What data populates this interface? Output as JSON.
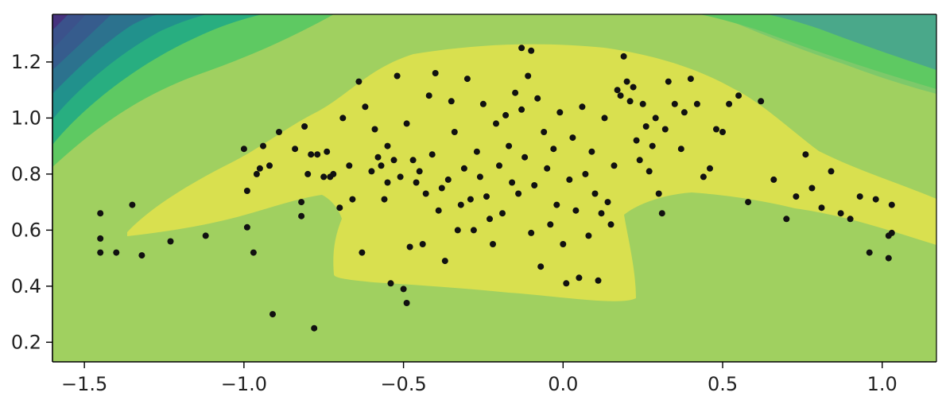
{
  "chart_data": {
    "type": "scatter",
    "title": "",
    "xlabel": "",
    "ylabel": "",
    "xlim": [
      -1.6,
      1.17
    ],
    "ylim": [
      0.13,
      1.37
    ],
    "x_ticks": [
      -1.5,
      -1.0,
      -0.5,
      0.0,
      0.5,
      1.0
    ],
    "x_tick_labels": [
      "−1.5",
      "−1.0",
      "−0.5",
      "0.0",
      "0.5",
      "1.0"
    ],
    "y_ticks": [
      0.2,
      0.4,
      0.6,
      0.8,
      1.0,
      1.2
    ],
    "y_tick_labels": [
      "0.2",
      "0.4",
      "0.6",
      "0.8",
      "1.0",
      "1.2"
    ],
    "grid": false,
    "background": "filled contour (viridis-like) with a high-density yellow region around the points",
    "contour_colors": [
      "#46327e",
      "#3b528b",
      "#365c8d",
      "#2c728e",
      "#21918c",
      "#28ae80",
      "#5ec962",
      "#7dc96a",
      "#a0d060",
      "#d9e04f"
    ],
    "point_color": "#111111",
    "points": [
      [
        -1.45,
        0.66
      ],
      [
        -1.45,
        0.57
      ],
      [
        -1.45,
        0.52
      ],
      [
        -1.4,
        0.52
      ],
      [
        -1.35,
        0.69
      ],
      [
        -1.32,
        0.51
      ],
      [
        -1.23,
        0.56
      ],
      [
        -1.12,
        0.58
      ],
      [
        -1.0,
        0.89
      ],
      [
        -0.99,
        0.74
      ],
      [
        -0.99,
        0.61
      ],
      [
        -0.97,
        0.52
      ],
      [
        -0.96,
        0.8
      ],
      [
        -0.95,
        0.82
      ],
      [
        -0.94,
        0.9
      ],
      [
        -0.92,
        0.83
      ],
      [
        -0.91,
        0.3
      ],
      [
        -0.89,
        0.95
      ],
      [
        -0.84,
        0.89
      ],
      [
        -0.82,
        0.7
      ],
      [
        -0.82,
        0.65
      ],
      [
        -0.81,
        0.97
      ],
      [
        -0.8,
        0.8
      ],
      [
        -0.79,
        0.87
      ],
      [
        -0.78,
        0.25
      ],
      [
        -0.77,
        0.87
      ],
      [
        -0.75,
        0.79
      ],
      [
        -0.74,
        0.88
      ],
      [
        -0.73,
        0.79
      ],
      [
        -0.72,
        0.8
      ],
      [
        -0.7,
        0.68
      ],
      [
        -0.69,
        1.0
      ],
      [
        -0.67,
        0.83
      ],
      [
        -0.66,
        0.71
      ],
      [
        -0.64,
        1.13
      ],
      [
        -0.63,
        0.52
      ],
      [
        -0.62,
        1.04
      ],
      [
        -0.6,
        0.81
      ],
      [
        -0.59,
        0.96
      ],
      [
        -0.58,
        0.86
      ],
      [
        -0.57,
        0.83
      ],
      [
        -0.56,
        0.71
      ],
      [
        -0.55,
        0.77
      ],
      [
        -0.55,
        0.9
      ],
      [
        -0.54,
        0.41
      ],
      [
        -0.53,
        0.85
      ],
      [
        -0.52,
        1.15
      ],
      [
        -0.51,
        0.79
      ],
      [
        -0.5,
        0.39
      ],
      [
        -0.49,
        0.98
      ],
      [
        -0.49,
        0.34
      ],
      [
        -0.48,
        0.54
      ],
      [
        -0.47,
        0.85
      ],
      [
        -0.46,
        0.77
      ],
      [
        -0.45,
        0.81
      ],
      [
        -0.44,
        0.55
      ],
      [
        -0.43,
        0.73
      ],
      [
        -0.42,
        1.08
      ],
      [
        -0.41,
        0.87
      ],
      [
        -0.4,
        1.16
      ],
      [
        -0.39,
        0.67
      ],
      [
        -0.38,
        0.75
      ],
      [
        -0.37,
        0.49
      ],
      [
        -0.36,
        0.78
      ],
      [
        -0.35,
        1.06
      ],
      [
        -0.34,
        0.95
      ],
      [
        -0.33,
        0.6
      ],
      [
        -0.32,
        0.69
      ],
      [
        -0.31,
        0.82
      ],
      [
        -0.3,
        1.14
      ],
      [
        -0.29,
        0.71
      ],
      [
        -0.28,
        0.6
      ],
      [
        -0.27,
        0.88
      ],
      [
        -0.26,
        0.79
      ],
      [
        -0.25,
        1.05
      ],
      [
        -0.24,
        0.72
      ],
      [
        -0.23,
        0.64
      ],
      [
        -0.22,
        0.55
      ],
      [
        -0.21,
        0.98
      ],
      [
        -0.2,
        0.83
      ],
      [
        -0.19,
        0.66
      ],
      [
        -0.18,
        1.01
      ],
      [
        -0.17,
        0.9
      ],
      [
        -0.16,
        0.77
      ],
      [
        -0.15,
        1.09
      ],
      [
        -0.14,
        0.73
      ],
      [
        -0.13,
        1.25
      ],
      [
        -0.13,
        1.03
      ],
      [
        -0.12,
        0.86
      ],
      [
        -0.11,
        1.15
      ],
      [
        -0.1,
        1.24
      ],
      [
        -0.1,
        0.59
      ],
      [
        -0.09,
        0.76
      ],
      [
        -0.08,
        1.07
      ],
      [
        -0.07,
        0.47
      ],
      [
        -0.06,
        0.95
      ],
      [
        -0.05,
        0.82
      ],
      [
        -0.04,
        0.62
      ],
      [
        -0.03,
        0.89
      ],
      [
        -0.02,
        0.69
      ],
      [
        -0.01,
        1.02
      ],
      [
        0.0,
        0.55
      ],
      [
        0.01,
        0.41
      ],
      [
        0.02,
        0.78
      ],
      [
        0.03,
        0.93
      ],
      [
        0.04,
        0.67
      ],
      [
        0.05,
        0.43
      ],
      [
        0.06,
        1.04
      ],
      [
        0.07,
        0.8
      ],
      [
        0.08,
        0.58
      ],
      [
        0.09,
        0.88
      ],
      [
        0.1,
        0.73
      ],
      [
        0.11,
        0.42
      ],
      [
        0.12,
        0.66
      ],
      [
        0.13,
        1.0
      ],
      [
        0.14,
        0.7
      ],
      [
        0.15,
        0.62
      ],
      [
        0.16,
        0.83
      ],
      [
        0.17,
        1.1
      ],
      [
        0.18,
        1.08
      ],
      [
        0.19,
        1.22
      ],
      [
        0.2,
        1.13
      ],
      [
        0.21,
        1.06
      ],
      [
        0.22,
        1.11
      ],
      [
        0.23,
        0.92
      ],
      [
        0.24,
        0.85
      ],
      [
        0.25,
        1.05
      ],
      [
        0.26,
        0.97
      ],
      [
        0.27,
        0.81
      ],
      [
        0.28,
        0.9
      ],
      [
        0.29,
        1.0
      ],
      [
        0.3,
        0.73
      ],
      [
        0.31,
        0.66
      ],
      [
        0.32,
        0.96
      ],
      [
        0.33,
        1.13
      ],
      [
        0.35,
        1.05
      ],
      [
        0.37,
        0.89
      ],
      [
        0.38,
        1.02
      ],
      [
        0.4,
        1.14
      ],
      [
        0.42,
        1.05
      ],
      [
        0.44,
        0.79
      ],
      [
        0.46,
        0.82
      ],
      [
        0.48,
        0.96
      ],
      [
        0.5,
        0.95
      ],
      [
        0.52,
        1.05
      ],
      [
        0.55,
        1.08
      ],
      [
        0.58,
        0.7
      ],
      [
        0.62,
        1.06
      ],
      [
        0.66,
        0.78
      ],
      [
        0.7,
        0.64
      ],
      [
        0.73,
        0.72
      ],
      [
        0.76,
        0.87
      ],
      [
        0.78,
        0.75
      ],
      [
        0.81,
        0.68
      ],
      [
        0.84,
        0.81
      ],
      [
        0.87,
        0.66
      ],
      [
        0.9,
        0.64
      ],
      [
        0.93,
        0.72
      ],
      [
        0.96,
        0.52
      ],
      [
        0.98,
        0.71
      ],
      [
        1.02,
        0.5
      ],
      [
        1.03,
        0.69
      ],
      [
        1.03,
        0.59
      ],
      [
        1.02,
        0.58
      ]
    ]
  }
}
